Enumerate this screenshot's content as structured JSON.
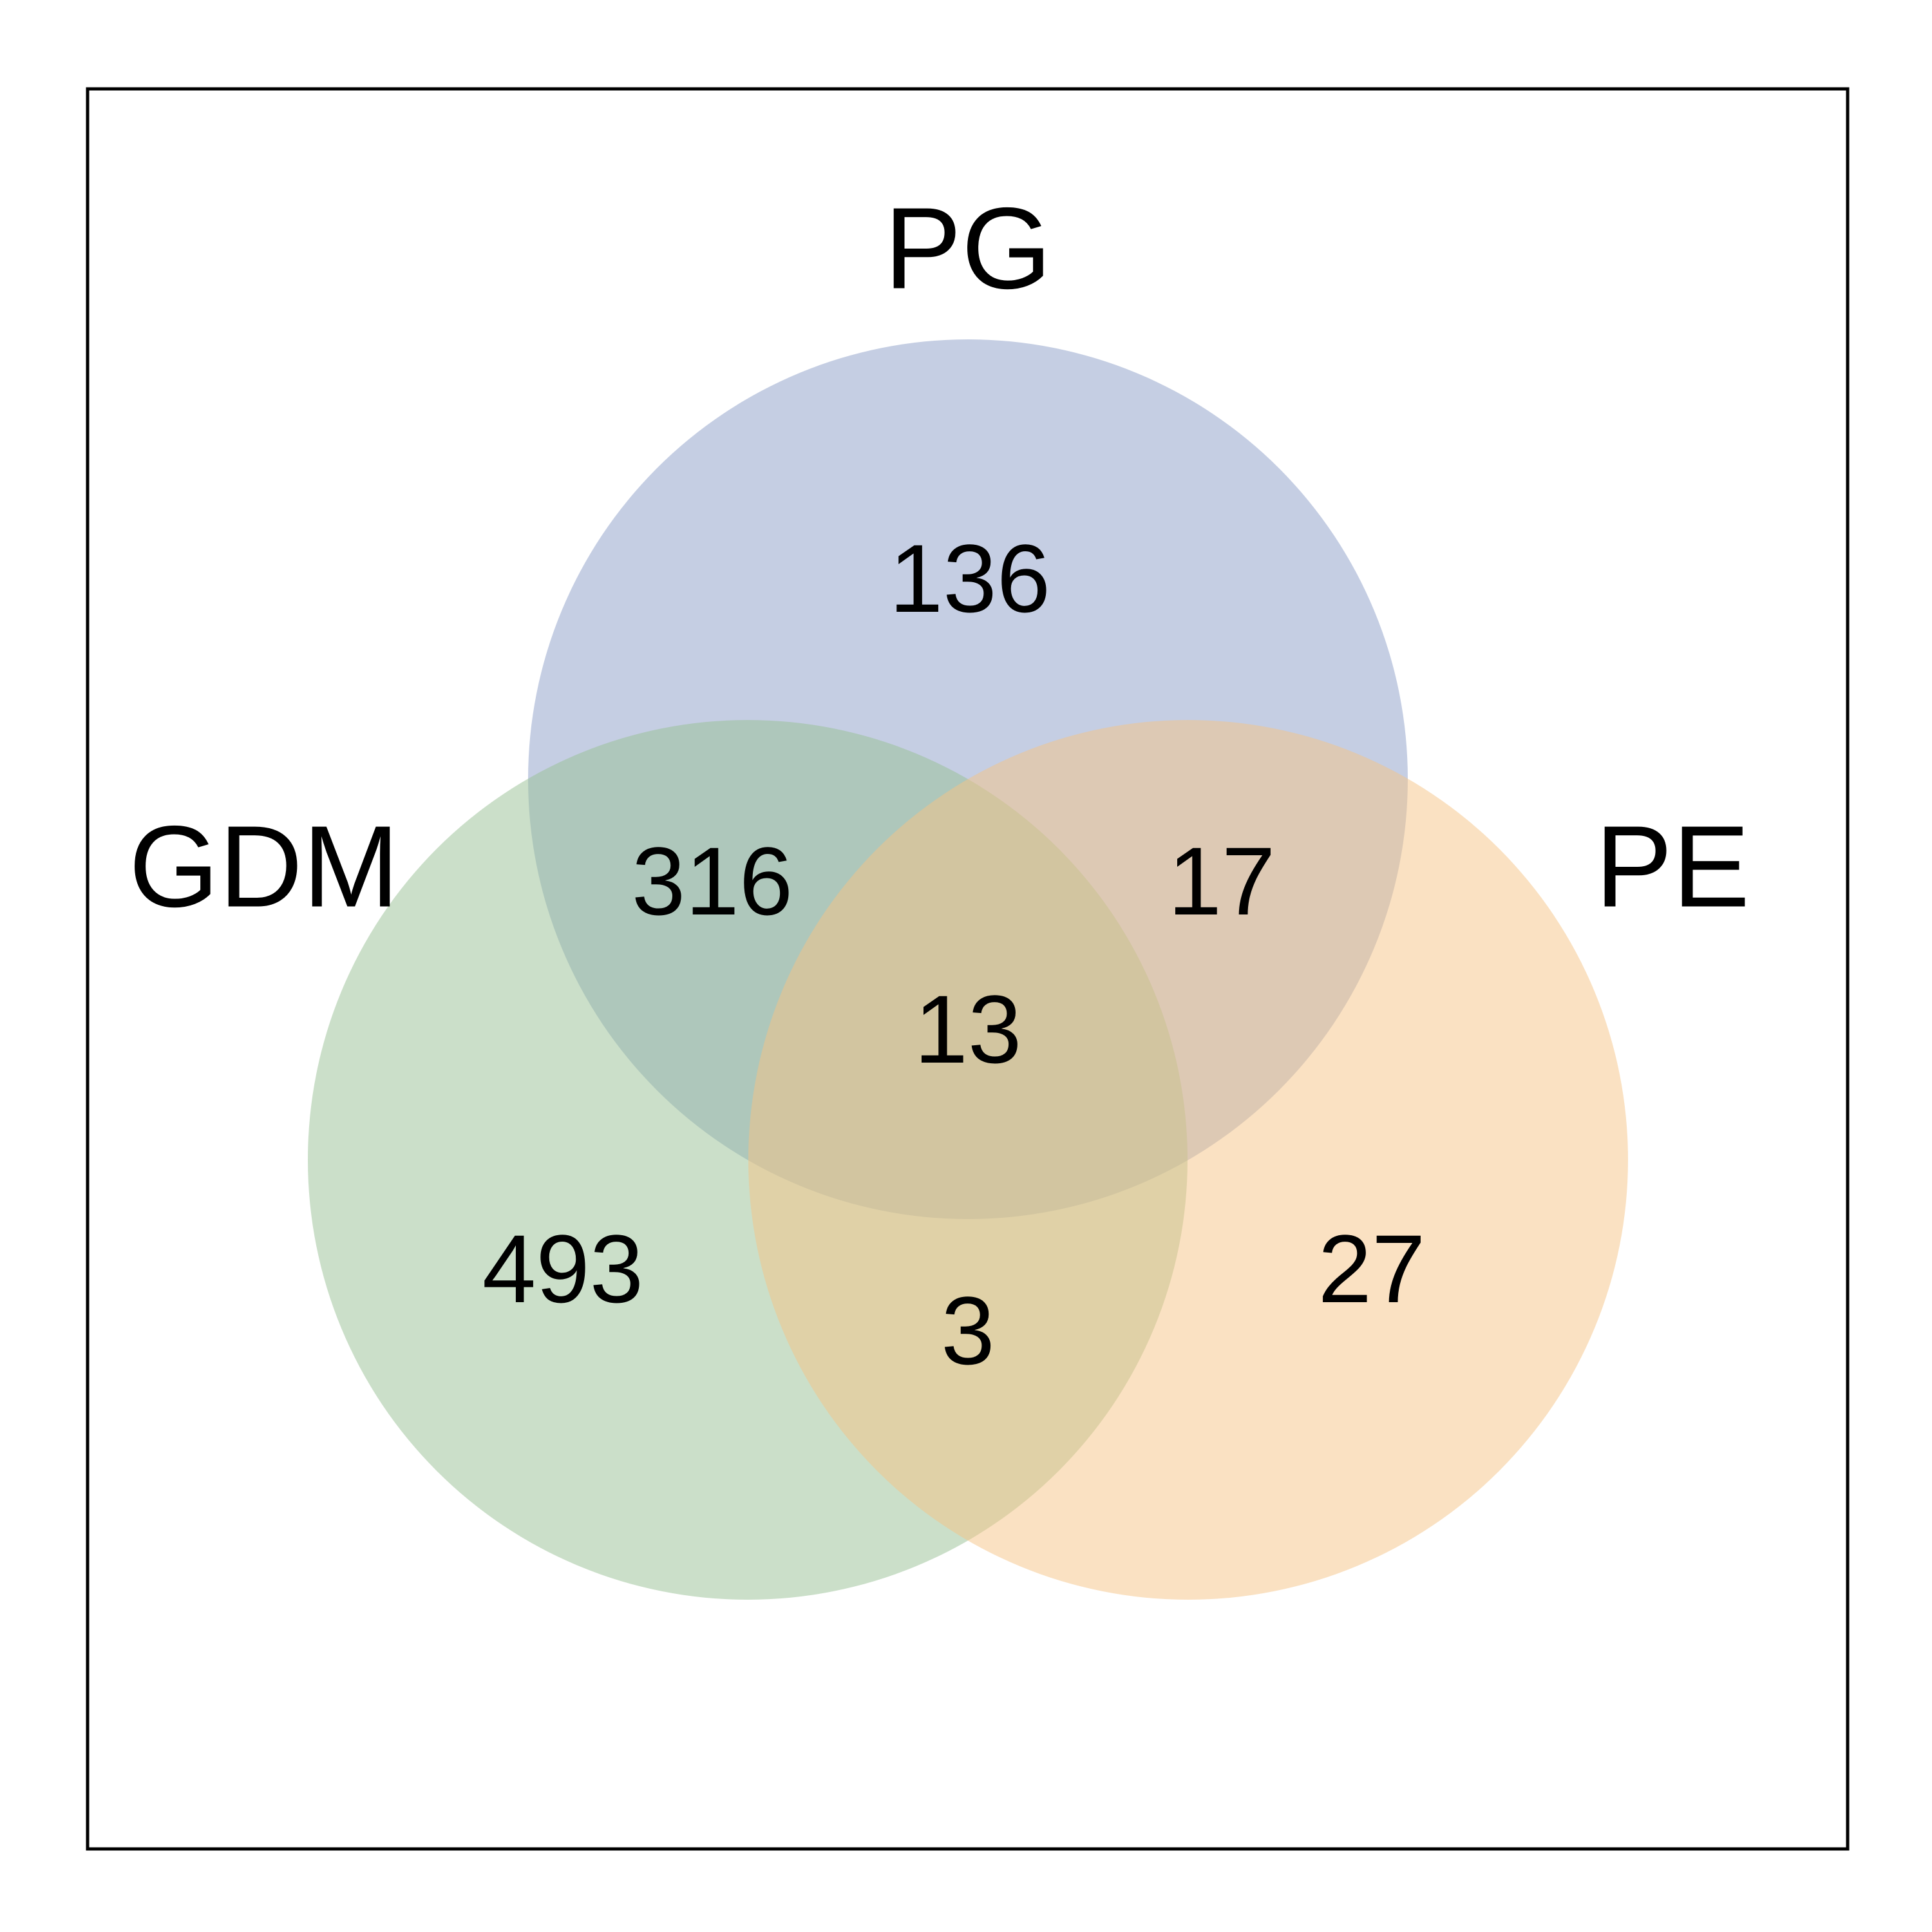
{
  "sets": [
    {
      "id": "PG",
      "label": "PG",
      "color": "#8c9dc7"
    },
    {
      "id": "GDM",
      "label": "GDM",
      "color": "#97bf94"
    },
    {
      "id": "PE",
      "label": "PE",
      "color": "#f6c386"
    }
  ],
  "regions": {
    "pg_only": "136",
    "gdm_only": "493",
    "pe_only": "27",
    "gdm_pg": "316",
    "pg_pe": "17",
    "gdm_pe": "3",
    "all_three": "13"
  }
}
